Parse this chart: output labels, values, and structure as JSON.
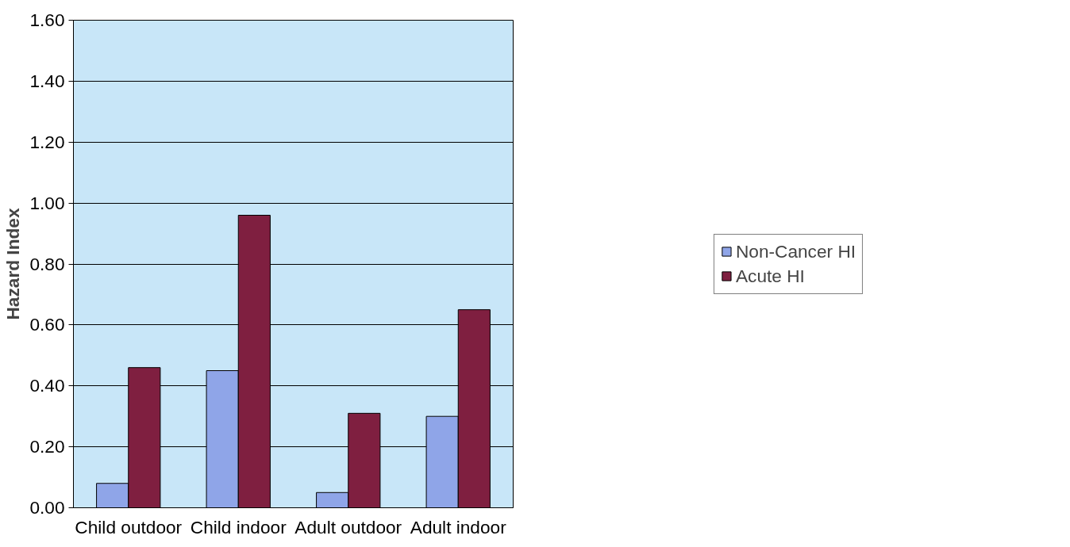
{
  "chart_data": {
    "type": "bar",
    "ylabel": "Hazard Index",
    "categories": [
      "Child outdoor",
      "Child indoor",
      "Adult outdoor",
      "Adult indoor"
    ],
    "series": [
      {
        "name": "Non-Cancer HI",
        "color": "#8fa5e8",
        "values": [
          0.08,
          0.45,
          0.05,
          0.3
        ]
      },
      {
        "name": "Acute HI",
        "color": "#7f1f40",
        "values": [
          0.46,
          0.96,
          0.31,
          0.65
        ]
      }
    ],
    "ylim": [
      0,
      1.6
    ],
    "yticks": [
      {
        "value": 0,
        "label": "0.00"
      },
      {
        "value": 0.2,
        "label": "0.20"
      },
      {
        "value": 0.4,
        "label": "0.40"
      },
      {
        "value": 0.6,
        "label": "0.60"
      },
      {
        "value": 0.8,
        "label": "0.80"
      },
      {
        "value": 1.0,
        "label": "1.00"
      },
      {
        "value": 1.2,
        "label": "1.20"
      },
      {
        "value": 1.4,
        "label": "1.40"
      },
      {
        "value": 1.6,
        "label": "1.60"
      }
    ],
    "grid": "y",
    "legend": "right"
  }
}
